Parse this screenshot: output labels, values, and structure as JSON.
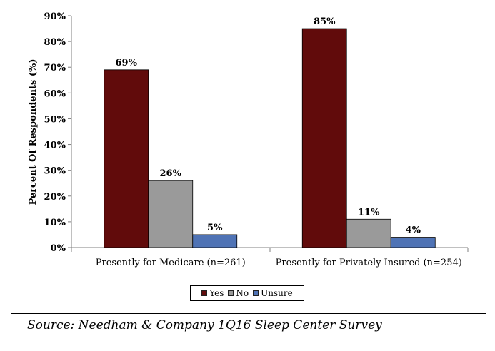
{
  "chart_data": {
    "type": "bar",
    "title": "",
    "xlabel": "",
    "ylabel": "Percent Of Respondents (%)",
    "ylim": [
      0,
      90
    ],
    "yticks": [
      "0%",
      "10%",
      "20%",
      "30%",
      "40%",
      "50%",
      "60%",
      "70%",
      "80%",
      "90%"
    ],
    "categories": [
      "Presently for Medicare (n=261)",
      "Presently for Privately Insured (n=254)"
    ],
    "series": [
      {
        "name": "Yes",
        "values": [
          69,
          85
        ],
        "labels": [
          "69%",
          "85%"
        ],
        "color": "#610B0B"
      },
      {
        "name": "No",
        "values": [
          26,
          11
        ],
        "labels": [
          "26%",
          "11%"
        ],
        "color": "#9A9A9A"
      },
      {
        "name": "Unsure",
        "values": [
          5,
          4
        ],
        "labels": [
          "5%",
          "4%"
        ],
        "color": "#4F73B5"
      }
    ],
    "grid": false,
    "legend": "bottom"
  },
  "source": "Source: Needham & Company 1Q16 Sleep Center Survey"
}
